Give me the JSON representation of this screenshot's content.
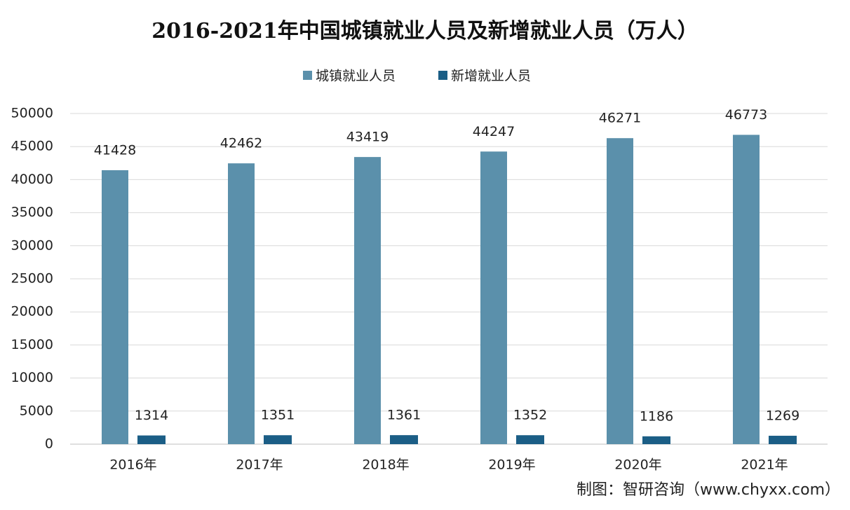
{
  "chart_data": {
    "type": "bar",
    "title": "2016-2021年中国城镇就业人员及新增就业人员（万人）",
    "categories": [
      "2016年",
      "2017年",
      "2018年",
      "2019年",
      "2020年",
      "2021年"
    ],
    "series": [
      {
        "name": "城镇就业人员",
        "color": "#5b90ab",
        "values": [
          41428,
          42462,
          43419,
          44247,
          46271,
          46773
        ]
      },
      {
        "name": "新增就业人员",
        "color": "#1b5e86",
        "values": [
          1314,
          1351,
          1361,
          1352,
          1186,
          1269
        ]
      }
    ],
    "ylim": [
      0,
      50000
    ],
    "yticks": [
      0,
      5000,
      10000,
      15000,
      20000,
      25000,
      30000,
      35000,
      40000,
      45000,
      50000
    ],
    "grid": true,
    "legend": "top",
    "source": "制图：智研咨询（www.chyxx.com）"
  }
}
